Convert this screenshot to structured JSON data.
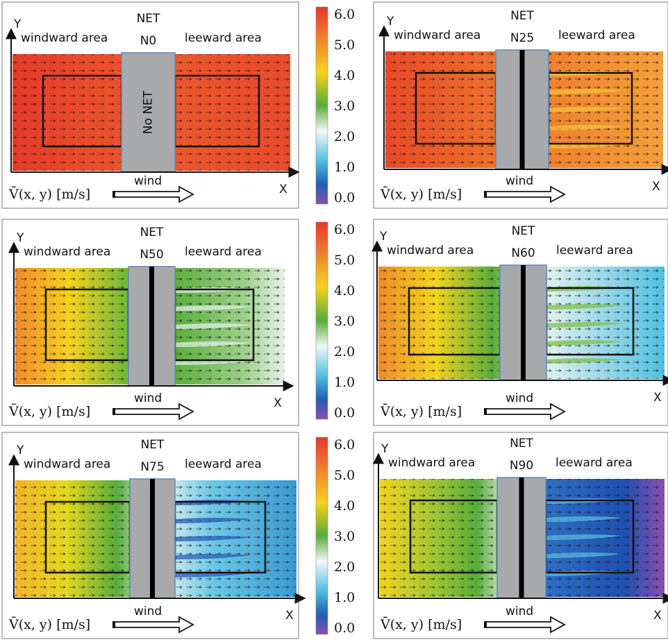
{
  "colors": {
    "red": "#e8372a",
    "orange": "#f08a2a",
    "yellow": "#f7d21e",
    "green": "#58ac3a",
    "white": "#f4f8f8",
    "cyan": "#4fc0e0",
    "blue": "#1f5fb8",
    "purple": "#8a4fb0",
    "net_gray": "#a8a9ab",
    "net_edge": "#5b8bc0"
  },
  "axes": {
    "x": "X",
    "y": "Y"
  },
  "labels": {
    "windward": "windward area",
    "leeward": "leeward area",
    "wind": "wind",
    "net_title": "NET",
    "velocity": "V̄(x, y) [m/s]",
    "no_net": "No NET"
  },
  "colorbar": {
    "ticks": [
      "6.0",
      "5.0",
      "4.0",
      "3.0",
      "2.0",
      "1.0",
      "0.0"
    ]
  },
  "panels": [
    {
      "id": "N0",
      "code": "N0",
      "windward_speed": 5.9,
      "leeward_speed": 5.9
    },
    {
      "id": "N25",
      "code": "N25",
      "windward_speed": 5.7,
      "leeward_speed": 5.3
    },
    {
      "id": "N50",
      "code": "N50",
      "windward_speed": 4.6,
      "leeward_speed": 3.4
    },
    {
      "id": "N60",
      "code": "N60",
      "windward_speed": 4.4,
      "leeward_speed": 2.6
    },
    {
      "id": "N75",
      "code": "N75",
      "windward_speed": 4.3,
      "leeward_speed": 2.4
    },
    {
      "id": "N90",
      "code": "N90",
      "windward_speed": 4.2,
      "leeward_speed": 1.2
    }
  ]
}
